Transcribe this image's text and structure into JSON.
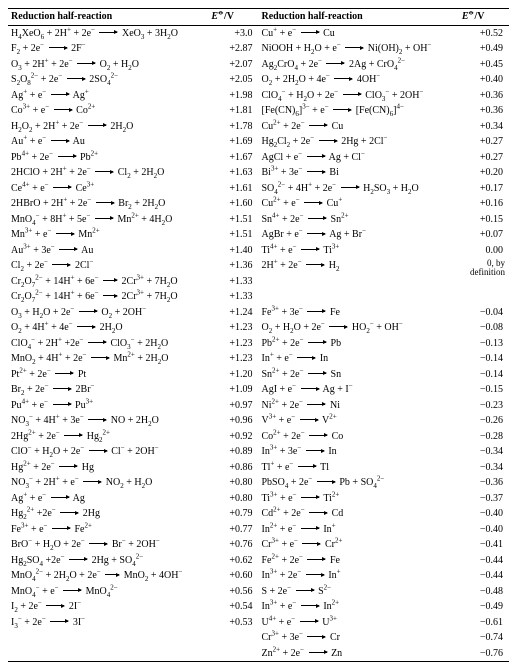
{
  "headers": {
    "reaction": "Reduction half-reaction",
    "potential_html": "<span class=\"italic\">E</span><sup>&#x29B5;</sup>/V"
  },
  "left": [
    {
      "r": "H<sub>4</sub>XeO<sub>6</sub> + 2H<sup>+</sup> + 2e<sup>−</sup> |→18| XeO<sub>3</sub> + 3H<sub>2</sub>O",
      "e": "+3.0"
    },
    {
      "r": "F<sub>2</sub> + 2e<sup>−</sup> |→18| 2F<sup>−</sup>",
      "e": "+2.87"
    },
    {
      "r": "O<sub>3</sub> + 2H<sup>+</sup> + 2e<sup>−</sup> |→18| O<sub>2</sub> + H<sub>2</sub>O",
      "e": "+2.07"
    },
    {
      "r": "S<sub>2</sub>O<sub>8</sub><sup>2−</sup> + 2e<sup>−</sup> |→18| 2SO<sub>4</sub><sup>2−</sup>",
      "e": "+2.05"
    },
    {
      "r": "Ag<sup>+</sup> + e<sup>−</sup> |→18| Ag<sup>+</sup>",
      "e": "+1.98"
    },
    {
      "r": "Co<sup>3+</sup> + e<sup>−</sup> |→18| Co<sup>2+</sup>",
      "e": "+1.81"
    },
    {
      "r": "H<sub>2</sub>O<sub>2</sub> + 2H<sup>+</sup> + 2e<sup>−</sup> |→18| 2H<sub>2</sub>O",
      "e": "+1.78"
    },
    {
      "r": "Au<sup>+</sup> + e<sup>−</sup> |→18| Au",
      "e": "+1.69"
    },
    {
      "r": "Pb<sup>4+</sup> + 2e<sup>−</sup> |→18| Pb<sup>2+</sup>",
      "e": "+1.67"
    },
    {
      "r": "2HClO + 2H<sup>+</sup> + 2e<sup>−</sup> |→18| Cl<sub>2</sub> + 2H<sub>2</sub>O",
      "e": "+1.63"
    },
    {
      "r": "Ce<sup>4+</sup> + e<sup>−</sup> |→18| Ce<sup>3+</sup>",
      "e": "+1.61"
    },
    {
      "r": "2HBrO + 2H<sup>+</sup> + 2e<sup>−</sup> |→18| Br<sub>2</sub> + 2H<sub>2</sub>O",
      "e": "+1.60"
    },
    {
      "r": "MnO<sub>4</sub><sup>−</sup> + 8H<sup>+</sup> + 5e<sup>−</sup> |→18| Mn<sup>2+</sup> + 4H<sub>2</sub>O",
      "e": "+1.51"
    },
    {
      "r": "Mn<sup>3+</sup> + e<sup>−</sup> |→18| Mn<sup>2+</sup>",
      "e": "+1.51"
    },
    {
      "r": "Au<sup>3+</sup> + 3e<sup>−</sup> |→18| Au",
      "e": "+1.40"
    },
    {
      "r": "Cl<sub>2</sub> + 2e<sup>−</sup> |→18| 2Cl<sup>−</sup>",
      "e": "+1.36"
    },
    {
      "r": "Cr<sub>2</sub>O<sub>7</sub><sup>2−</sup> + 14H<sup>+</sup> + 6e<sup>−</sup> |→14| 2Cr<sup>3+</sup> + 7H<sub>2</sub>O",
      "e": "+1.33"
    },
    {
      "r": "O<sub>3</sub> + H<sub>2</sub>O + 2e<sup>−</sup> |→18| O<sub>2</sub> + 2OH<sup>−</sup>",
      "e": "+1.24"
    },
    {
      "r": "O<sub>2</sub> + 4H<sup>+</sup> + 4e<sup>−</sup> |→18| 2H<sub>2</sub>O",
      "e": "+1.23"
    },
    {
      "r": "ClO<sub>4</sub><sup>−</sup> + 2H<sup>+</sup> +2e<sup>−</sup> |→18| ClO<sub>3</sub><sup>−</sup> + 2H<sub>2</sub>O",
      "e": "+1.23"
    },
    {
      "r": "MnO<sub>2</sub> + 4H<sup>+</sup> + 2e<sup>−</sup> |→18| Mn<sup>2+</sup> + 2H<sub>2</sub>O",
      "e": "+1.23"
    },
    {
      "r": "Pt<sup>2+</sup> + 2e<sup>−</sup> |→18| Pt",
      "e": "+1.20"
    },
    {
      "r": "Br<sub>2</sub> + 2e<sup>−</sup> |→18| 2Br<sup>−</sup>",
      "e": "+1.09"
    },
    {
      "r": "Pu<sup>4+</sup> + e<sup>−</sup> |→18| Pu<sup>3+</sup>",
      "e": "+0.97"
    },
    {
      "r": "NO<sub>3</sub><sup>−</sup> + 4H<sup>+</sup> + 3e<sup>−</sup> |→18| NO + 2H<sub>2</sub>O",
      "e": "+0.96"
    },
    {
      "r": "2Hg<sup>2+</sup> + 2e<sup>−</sup> |→18| Hg<sub>2</sub><sup>2+</sup>",
      "e": "+0.92"
    },
    {
      "r": "ClO<sup>−</sup> + H<sub>2</sub>O + 2e<sup>−</sup> |→18| Cl<sup>−</sup> + 2OH<sup>−</sup>",
      "e": "+0.89"
    },
    {
      "r": "Hg<sup>2+</sup> + 2e<sup>−</sup> |→18| Hg",
      "e": "+0.86"
    },
    {
      "r": "NO<sub>3</sub><sup>−</sup> + 2H<sup>+</sup> + e<sup>−</sup> |→18| NO<sub>2</sub> + H<sub>2</sub>O",
      "e": "+0.80"
    },
    {
      "r": "Ag<sup>+</sup> + e<sup>−</sup> |→18| Ag",
      "e": "+0.80"
    },
    {
      "r": "Hg<sub>2</sub><sup>2+</sup> +2e<sup>−</sup> |→18| 2Hg",
      "e": "+0.79"
    },
    {
      "r": "Fe<sup>3+</sup> + e<sup>−</sup> |→18| Fe<sup>2+</sup>",
      "e": "+0.77"
    },
    {
      "r": "BrO<sup>−</sup> + H<sub>2</sub>O + 2e<sup>−</sup> |→18| Br<sup>−</sup> + 2OH<sup>−</sup>",
      "e": "+0.76"
    },
    {
      "r": "Hg<sub>2</sub>SO<sub>4</sub> +2e<sup>−</sup> |→18| 2Hg + SO<sub>4</sub><sup>2−</sup>",
      "e": "+0.62"
    },
    {
      "r": "MnO<sub>4</sub><sup>2−</sup> + 2H<sub>2</sub>O + 2e<sup>−</sup> |→14| MnO<sub>2</sub> + 4OH<sup>−</sup>",
      "e": "+0.60"
    },
    {
      "r": "MnO<sub>4</sub><sup>−</sup> + e<sup>−</sup> |→18| MnO<sub>4</sub><sup>2−</sup>",
      "e": "+0.56"
    },
    {
      "r": "I<sub>2</sub> + 2e<sup>−</sup> |→18| 2I<sup>−</sup>",
      "e": "+0.54"
    },
    {
      "r": "I<sub>3</sub><sup>−</sup> + 2e<sup>−</sup> |→18| 3I<sup>−</sup>",
      "e": "+0.53"
    }
  ],
  "right": [
    {
      "r": "Cu<sup>+</sup> + e<sup>−</sup> |→18| Cu",
      "e": "+0.52"
    },
    {
      "r": "NiOOH + H<sub>2</sub>O + e<sup>−</sup> |→18| Ni(OH)<sub>2</sub> + OH<sup>−</sup>",
      "e": "+0.49"
    },
    {
      "r": "Ag<sub>2</sub>CrO<sub>4</sub> + 2e<sup>−</sup> |→18| 2Ag + CrO<sub>4</sub><sup>2−</sup>",
      "e": "+0.45"
    },
    {
      "r": "O<sub>2</sub> + 2H<sub>2</sub>O + 4e<sup>−</sup> |→18| 4OH<sup>−</sup>",
      "e": "+0.40"
    },
    {
      "r": "ClO<sub>4</sub><sup>−</sup> + H<sub>2</sub>O + 2e<sup>−</sup> |→18| ClO<sub>3</sub><sup>−</sup> + 2OH<sup>−</sup>",
      "e": "+0.36"
    },
    {
      "r": "[Fe(CN)<sub>6</sub>]<sup>3−</sup> + e<sup>−</sup> |→18| [Fe(CN)<sub>6</sub>]<sup>4−</sup>",
      "e": "+0.36"
    },
    {
      "r": "Cu<sup>2+</sup> + 2e<sup>−</sup> |→18| Cu",
      "e": "+0.34"
    },
    {
      "r": "Hg<sub>2</sub>Cl<sub>2</sub> + 2e<sup>−</sup> |→18| 2Hg + 2Cl<sup>−</sup>",
      "e": "+0.27"
    },
    {
      "r": "AgCl + e<sup>−</sup> |→18| Ag + Cl<sup>−</sup>",
      "e": "+0.27"
    },
    {
      "r": "Bi<sup>3+</sup> + 3e<sup>−</sup> |→18| Bi",
      "e": "+0.20"
    },
    {
      "r": "SO<sub>4</sub><sup>2−</sup> + 4H<sup>+</sup> + 2e<sup>−</sup> |→18| H<sub>2</sub>SO<sub>3</sub> + H<sub>2</sub>O",
      "e": "+0.17"
    },
    {
      "r": "Cu<sup>2+</sup> + e<sup>−</sup> |→18| Cu<sup>+</sup>",
      "e": "+0.16"
    },
    {
      "r": "Sn<sup>4+</sup> + 2e<sup>−</sup> |→18| Sn<sup>2+</sup>",
      "e": "+0.15"
    },
    {
      "r": "AgBr + e<sup>−</sup> |→18| Ag + Br<sup>−</sup>",
      "e": "+0.07"
    },
    {
      "r": "Ti<sup>4+</sup> + e<sup>−</sup> |→18| Ti<sup>3+</sup>",
      "e": "0.00"
    },
    {
      "r": "2H<sup>+</sup> + 2e<sup>−</sup> |→18| H<sub>2</sub>",
      "e": "__BYDEF__"
    },
    {
      "r": "",
      "e": ""
    },
    {
      "r": "Fe<sup>3+</sup> + 3e<sup>−</sup> |→18| Fe",
      "e": "−0.04"
    },
    {
      "r": "O<sub>2</sub> + H<sub>2</sub>O + 2e<sup>−</sup> |→18| HO<sub>2</sub><sup>−</sup> + OH<sup>−</sup>",
      "e": "−0.08"
    },
    {
      "r": "Pb<sup>2+</sup> + 2e<sup>−</sup> |→18| Pb",
      "e": "−0.13"
    },
    {
      "r": "In<sup>+</sup> + e<sup>−</sup> |→18| In",
      "e": "−0.14"
    },
    {
      "r": "Sn<sup>2+</sup> + 2e<sup>−</sup> |→18| Sn",
      "e": "−0.14"
    },
    {
      "r": "AgI + e<sup>−</sup> |→18| Ag + I<sup>−</sup>",
      "e": "−0.15"
    },
    {
      "r": "Ni<sup>2+</sup> + 2e<sup>−</sup> |→18| Ni",
      "e": "−0.23"
    },
    {
      "r": "V<sup>3+</sup> + e<sup>−</sup> |→18| V<sup>2+</sup>",
      "e": "−0.26"
    },
    {
      "r": "Co<sup>2+</sup> + 2e<sup>−</sup> |→18| Co",
      "e": "−0.28"
    },
    {
      "r": "In<sup>3+</sup> + 3e<sup>−</sup> |→18| In",
      "e": "−0.34"
    },
    {
      "r": "Tl<sup>+</sup> + e<sup>−</sup> |→18| Tl",
      "e": "−0.34"
    },
    {
      "r": "PbSO<sub>4</sub> + 2e<sup>−</sup> |→18| Pb + SO<sub>4</sub><sup>2−</sup>",
      "e": "−0.36"
    },
    {
      "r": "Ti<sup>3+</sup> + e<sup>−</sup> |→18| Ti<sup>2+</sup>",
      "e": "−0.37"
    },
    {
      "r": "Cd<sup>2+</sup> + 2e<sup>−</sup> |→18| Cd",
      "e": "−0.40"
    },
    {
      "r": "In<sup>2+</sup> + e<sup>−</sup> |→18| In<sup>+</sup>",
      "e": "−0.40"
    },
    {
      "r": "Cr<sup>3+</sup> + e<sup>−</sup> |→18| Cr<sup>2+</sup>",
      "e": "−0.41"
    },
    {
      "r": "Fe<sup>2+</sup> + 2e<sup>−</sup> |→18| Fe",
      "e": "−0.44"
    },
    {
      "r": "In<sup>3+</sup> + 2e<sup>−</sup> |→18| In<sup>+</sup>",
      "e": "−0.44"
    },
    {
      "r": "S + 2e<sup>−</sup> |→18| S<sup>2−</sup>",
      "e": "−0.48"
    },
    {
      "r": "In<sup>3+</sup> + e<sup>−</sup> |→18| In<sup>2+</sup>",
      "e": "−0.49"
    },
    {
      "r": "U<sup>4+</sup> + e<sup>−</sup> |→18| U<sup>3+</sup>",
      "e": "−0.61"
    },
    {
      "r": "Cr<sup>3+</sup> + 3e<sup>−</sup> |→18| Cr",
      "e": "−0.74"
    },
    {
      "r": "Zn<sup>2+</sup> + 2e<sup>−</sup> |→18| Zn",
      "e": "−0.76"
    }
  ],
  "bydef_html": "0, by<br>definition"
}
